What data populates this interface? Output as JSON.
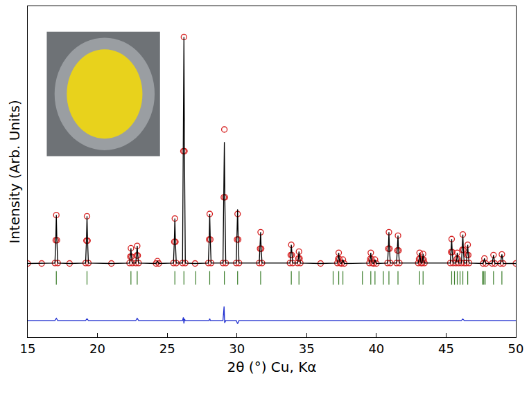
{
  "chart_data": {
    "type": "scatter",
    "x_label": "2θ (°) Cu, Kα",
    "y_label": "Intensity (Arb. Units)",
    "xlim": [
      15,
      50
    ],
    "xticks": [
      15,
      20,
      25,
      30,
      35,
      40,
      45,
      50
    ],
    "ylim": [
      -315,
      1135
    ],
    "grid": false,
    "tick_labels": "x",
    "series": [
      {
        "type": "scatter",
        "color": "#d62020",
        "marker": "circle-open",
        "x": [
          15,
          16,
          16.95,
          17.01,
          17.05,
          17.09,
          17.15,
          18,
          19.15,
          19.21,
          19.25,
          19.29,
          19.35,
          21,
          22.3,
          22.36,
          22.4,
          22.44,
          22.5,
          22.75,
          22.81,
          22.85,
          22.89,
          22.95,
          24.2,
          24.3,
          24.4,
          25.45,
          25.51,
          25.55,
          25.59,
          25.65,
          26.1,
          26.16,
          26.2,
          26.24,
          26.3,
          27,
          27.95,
          28.01,
          28.05,
          28.09,
          28.15,
          29.0,
          29.06,
          29.1,
          29.14,
          29.2,
          29.95,
          30.01,
          30.05,
          30.09,
          30.15,
          31.6,
          31.66,
          31.7,
          31.74,
          31.8,
          33.8,
          33.86,
          33.9,
          33.94,
          34.0,
          34.35,
          34.41,
          34.45,
          34.49,
          34.55,
          36,
          37.2,
          37.26,
          37.3,
          37.34,
          37.4,
          37.5,
          37.6,
          37.7,
          39.5,
          39.56,
          39.6,
          39.64,
          39.7,
          39.8,
          39.9,
          40.0,
          40.8,
          40.86,
          40.9,
          40.94,
          41.0,
          41.45,
          41.51,
          41.55,
          41.59,
          41.65,
          43.0,
          43.06,
          43.1,
          43.14,
          43.2,
          43.28,
          43.31,
          43.35,
          43.39,
          43.45,
          45.3,
          45.36,
          45.4,
          45.44,
          45.5,
          45.7,
          45.76,
          45.8,
          45.84,
          45.9,
          46.1,
          46.16,
          46.2,
          46.24,
          46.3,
          46.45,
          46.51,
          46.55,
          46.59,
          46.65,
          47.65,
          47.75,
          47.85,
          48.3,
          48.4,
          48.5,
          48.9,
          49.0,
          49.1,
          50
        ],
        "values": [
          8,
          8,
          10,
          110,
          220,
          110,
          10,
          8,
          10,
          108,
          215,
          108,
          10,
          8,
          10,
          38,
          75,
          38,
          10,
          10,
          43,
          85,
          43,
          10,
          8,
          18,
          8,
          10,
          103,
          205,
          103,
          10,
          10,
          500,
          1000,
          500,
          10,
          8,
          10,
          113,
          225,
          113,
          10,
          10,
          298,
          595,
          298,
          10,
          10,
          113,
          225,
          113,
          10,
          10,
          73,
          145,
          73,
          10,
          10,
          45,
          90,
          45,
          10,
          10,
          30,
          60,
          30,
          10,
          8,
          10,
          28,
          55,
          28,
          10,
          8,
          25,
          8,
          10,
          28,
          55,
          28,
          10,
          8,
          25,
          8,
          10,
          73,
          145,
          73,
          10,
          10,
          65,
          130,
          65,
          10,
          10,
          28,
          55,
          28,
          10,
          10,
          25,
          50,
          25,
          10,
          10,
          58,
          115,
          58,
          10,
          10,
          28,
          55,
          28,
          10,
          10,
          68,
          135,
          68,
          10,
          10,
          45,
          90,
          45,
          10,
          8,
          30,
          8,
          8,
          45,
          8,
          8,
          48,
          8,
          8
        ]
      },
      {
        "type": "line",
        "color": "#000000",
        "line_style": "solid",
        "x": [
          15,
          16,
          16.95,
          17.01,
          17.05,
          17.09,
          17.15,
          18,
          19.15,
          19.21,
          19.25,
          19.29,
          19.35,
          21,
          22.3,
          22.36,
          22.4,
          22.44,
          22.5,
          22.75,
          22.81,
          22.85,
          22.89,
          22.95,
          24.2,
          24.3,
          24.4,
          25.45,
          25.51,
          25.55,
          25.59,
          25.65,
          26.1,
          26.16,
          26.2,
          26.24,
          26.3,
          27,
          27.95,
          28.01,
          28.05,
          28.09,
          28.15,
          29.0,
          29.06,
          29.1,
          29.14,
          29.2,
          29.95,
          30.01,
          30.05,
          30.09,
          30.15,
          31.6,
          31.66,
          31.7,
          31.74,
          31.8,
          33.8,
          33.86,
          33.9,
          33.94,
          34.0,
          34.35,
          34.41,
          34.45,
          34.49,
          34.55,
          36,
          37.2,
          37.26,
          37.3,
          37.34,
          37.4,
          37.5,
          37.6,
          37.7,
          39.5,
          39.56,
          39.6,
          39.64,
          39.7,
          39.8,
          39.9,
          40.0,
          40.8,
          40.86,
          40.9,
          40.94,
          41.0,
          41.45,
          41.51,
          41.55,
          41.59,
          41.65,
          43.0,
          43.06,
          43.1,
          43.14,
          43.2,
          43.28,
          43.31,
          43.35,
          43.39,
          43.45,
          45.3,
          45.36,
          45.4,
          45.44,
          45.5,
          45.7,
          45.76,
          45.8,
          45.84,
          45.9,
          46.1,
          46.16,
          46.2,
          46.24,
          46.3,
          46.45,
          46.51,
          46.55,
          46.59,
          46.65,
          47.65,
          47.75,
          47.85,
          48.3,
          48.4,
          48.5,
          48.9,
          49.0,
          49.1,
          50
        ],
        "values": [
          8,
          8,
          10,
          110,
          220,
          110,
          10,
          8,
          10,
          108,
          215,
          108,
          10,
          8,
          10,
          38,
          75,
          38,
          10,
          10,
          43,
          85,
          43,
          10,
          8,
          18,
          8,
          10,
          103,
          205,
          103,
          10,
          10,
          500,
          1000,
          500,
          10,
          8,
          10,
          113,
          225,
          113,
          10,
          10,
          270,
          540,
          270,
          10,
          10,
          123,
          245,
          123,
          10,
          10,
          73,
          145,
          73,
          10,
          10,
          45,
          90,
          45,
          10,
          10,
          30,
          60,
          30,
          10,
          8,
          10,
          28,
          55,
          28,
          10,
          8,
          25,
          8,
          10,
          28,
          55,
          28,
          10,
          8,
          25,
          8,
          10,
          73,
          145,
          73,
          10,
          10,
          65,
          130,
          65,
          10,
          10,
          28,
          55,
          28,
          10,
          10,
          25,
          50,
          25,
          10,
          10,
          58,
          115,
          58,
          10,
          10,
          28,
          55,
          28,
          10,
          10,
          68,
          135,
          68,
          10,
          10,
          45,
          90,
          45,
          10,
          8,
          30,
          8,
          8,
          45,
          8,
          8,
          48,
          8,
          8
        ]
      },
      {
        "type": "ticks",
        "color": "#3a7d2a",
        "marker": "line-ns",
        "x": [
          17.05,
          19.25,
          22.4,
          22.85,
          25.55,
          26.2,
          27.05,
          28.05,
          29.1,
          30.05,
          31.7,
          33.9,
          34.45,
          36.9,
          37.3,
          37.6,
          39.0,
          39.6,
          39.9,
          40.5,
          40.9,
          41.55,
          43.1,
          43.35,
          45.4,
          45.6,
          45.8,
          46.0,
          46.2,
          46.55,
          47.6,
          47.7,
          47.8,
          48.4,
          49.0
        ],
        "values": [
          -55,
          -55,
          -55,
          -55,
          -55,
          -55,
          -55,
          -55,
          -55,
          -55,
          -55,
          -55,
          -55,
          -55,
          -55,
          -55,
          -55,
          -55,
          -55,
          -55,
          -55,
          -55,
          -55,
          -55,
          -55,
          -55,
          -55,
          -55,
          -55,
          -55,
          -55,
          -55,
          -55,
          -55,
          -55
        ]
      },
      {
        "type": "line",
        "color": "#1f2fd0",
        "line_style": "solid",
        "x": [
          15,
          16.95,
          17.05,
          17.15,
          19.15,
          19.25,
          19.35,
          22.75,
          22.85,
          22.95,
          26.1,
          26.16,
          26.2,
          26.24,
          26.3,
          28.0,
          28.05,
          28.1,
          29.0,
          29.08,
          29.12,
          29.2,
          29.95,
          30.05,
          30.15,
          46.1,
          46.2,
          46.3,
          50
        ],
        "values": [
          -242,
          -242,
          -232,
          -242,
          -242,
          -234,
          -242,
          -242,
          -232,
          -242,
          -242,
          -228,
          -255,
          -235,
          -242,
          -242,
          -234,
          -242,
          -242,
          -180,
          -252,
          -242,
          -242,
          -256,
          -242,
          -242,
          -235,
          -242,
          -242
        ]
      }
    ]
  }
}
